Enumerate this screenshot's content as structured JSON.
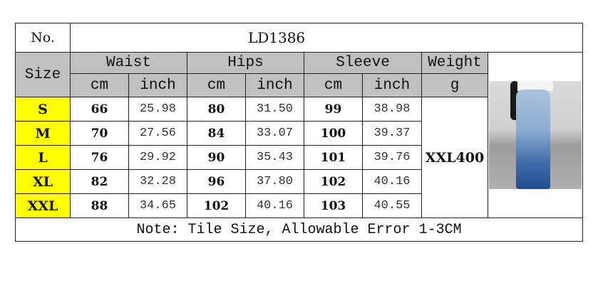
{
  "no_label": "No.",
  "model": "LD1386",
  "size_label": "Size",
  "groups": {
    "waist": "Waist",
    "hips": "Hips",
    "sleeve": "Sleeve",
    "weight": "Weight"
  },
  "units": {
    "cm": "cm",
    "inch": "inch",
    "g": "g"
  },
  "rows": [
    {
      "size": "S",
      "waist_cm": "66",
      "waist_in": "25.98",
      "hips_cm": "80",
      "hips_in": "31.50",
      "sleeve_cm": "99",
      "sleeve_in": "38.98"
    },
    {
      "size": "M",
      "waist_cm": "70",
      "waist_in": "27.56",
      "hips_cm": "84",
      "hips_in": "33.07",
      "sleeve_cm": "100",
      "sleeve_in": "39.37"
    },
    {
      "size": "L",
      "waist_cm": "76",
      "waist_in": "29.92",
      "hips_cm": "90",
      "hips_in": "35.43",
      "sleeve_cm": "101",
      "sleeve_in": "39.76"
    },
    {
      "size": "XL",
      "waist_cm": "82",
      "waist_in": "32.28",
      "hips_cm": "96",
      "hips_in": "37.80",
      "sleeve_cm": "102",
      "sleeve_in": "40.16"
    },
    {
      "size": "XXL",
      "waist_cm": "88",
      "waist_in": "34.65",
      "hips_cm": "102",
      "hips_in": "40.16",
      "sleeve_cm": "103",
      "sleeve_in": "40.55"
    }
  ],
  "weight": "XXL400",
  "note": "Note: Tile Size, Allowable Error 1-3CM",
  "colors": {
    "header_bg": "#c0c0c0",
    "size_bg": "#ffff00"
  }
}
